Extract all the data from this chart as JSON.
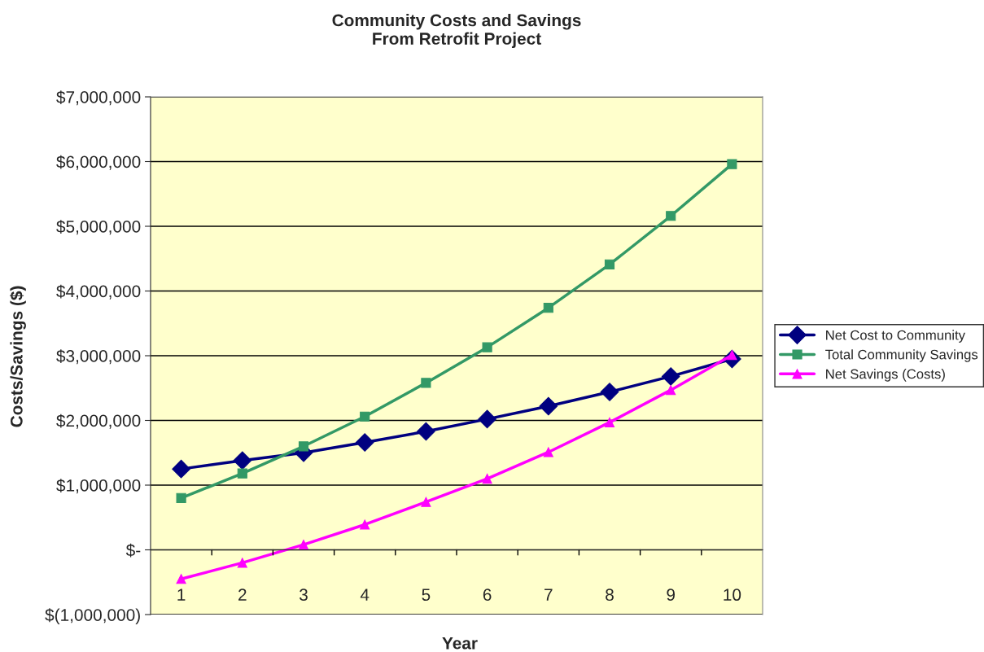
{
  "chart_data": {
    "type": "line",
    "title": "Community Costs and Savings\nFrom Retrofit Project",
    "xlabel": "Year",
    "ylabel": "Costs/Savings ($)",
    "categories": [
      "1",
      "2",
      "3",
      "4",
      "5",
      "6",
      "7",
      "8",
      "9",
      "10"
    ],
    "series": [
      {
        "name": "Net Cost to Community",
        "color": "#000080",
        "marker": "diamond",
        "values": [
          1250000,
          1380000,
          1500000,
          1660000,
          1830000,
          2020000,
          2220000,
          2440000,
          2680000,
          2950000
        ]
      },
      {
        "name": "Total Community Savings",
        "color": "#339966",
        "marker": "square",
        "values": [
          800000,
          1180000,
          1600000,
          2060000,
          2580000,
          3130000,
          3740000,
          4410000,
          5160000,
          5960000
        ]
      },
      {
        "name": "Net Savings (Costs)",
        "color": "#ff00ff",
        "marker": "triangle",
        "values": [
          -450000,
          -200000,
          80000,
          390000,
          740000,
          1100000,
          1510000,
          1970000,
          2470000,
          3010000
        ]
      }
    ],
    "ylim": [
      -1000000,
      7000000
    ],
    "yticks": [
      {
        "value": -1000000,
        "label": "$(1,000,000)"
      },
      {
        "value": 0,
        "label": "$-"
      },
      {
        "value": 1000000,
        "label": "$1,000,000"
      },
      {
        "value": 2000000,
        "label": "$2,000,000"
      },
      {
        "value": 3000000,
        "label": "$3,000,000"
      },
      {
        "value": 4000000,
        "label": "$4,000,000"
      },
      {
        "value": 5000000,
        "label": "$5,000,000"
      },
      {
        "value": 6000000,
        "label": "$6,000,000"
      },
      {
        "value": 7000000,
        "label": "$7,000,000"
      }
    ],
    "grid": "y",
    "legend": "right",
    "line_style": "solid"
  }
}
